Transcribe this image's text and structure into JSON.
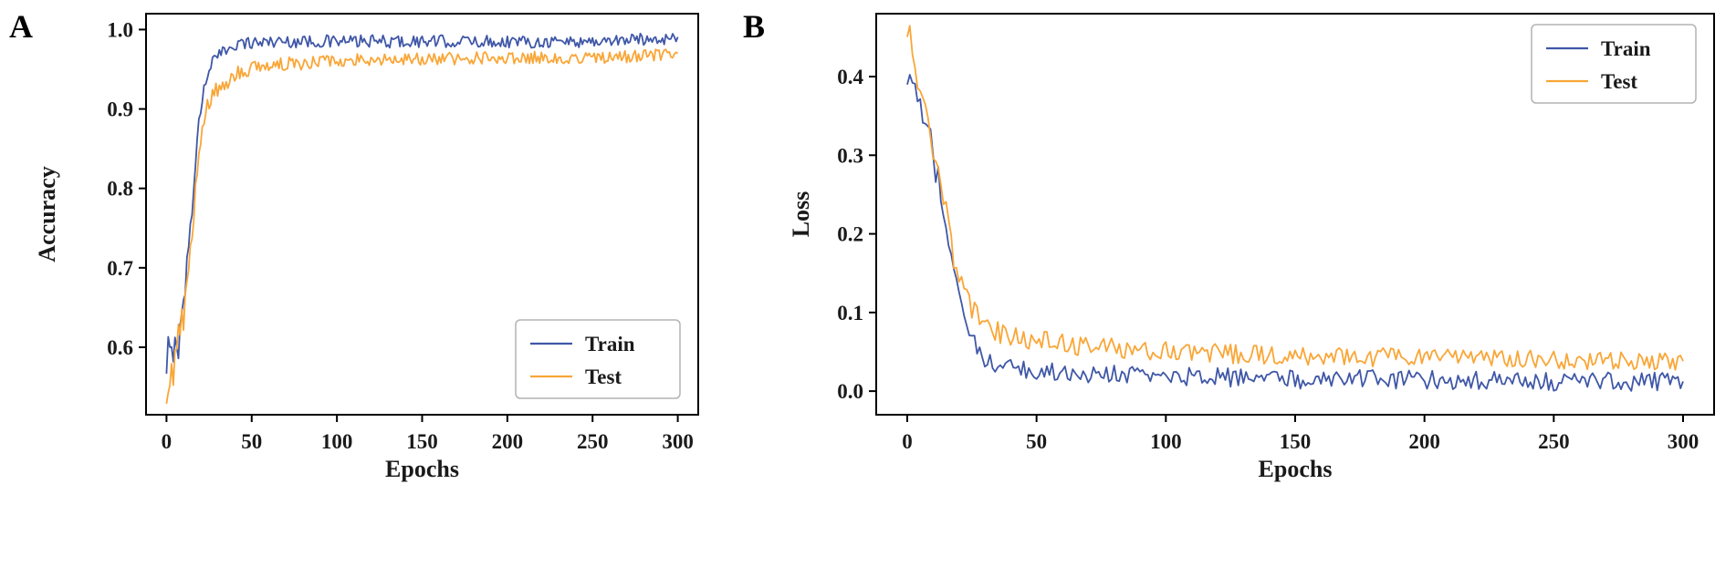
{
  "figure": {
    "background": "#ffffff"
  },
  "panels": [
    {
      "label": "A"
    },
    {
      "label": "B"
    }
  ],
  "colors": {
    "train": "#3f57a7",
    "test": "#f9a637",
    "axis": "#000000",
    "legend_border": "#b3b3b3",
    "text": "#1a1a1a"
  },
  "chart_data": [
    {
      "type": "line",
      "panel": "A",
      "title": "",
      "xlabel": "Epochs",
      "ylabel": "Accuracy",
      "xlim": [
        -12,
        312
      ],
      "ylim": [
        0.515,
        1.02
      ],
      "x_ticks": [
        0,
        50,
        100,
        150,
        200,
        250,
        300
      ],
      "x_tick_labels": [
        "0",
        "50",
        "100",
        "150",
        "200",
        "250",
        "300"
      ],
      "y_ticks": [
        0.6,
        0.7,
        0.8,
        0.9,
        1.0
      ],
      "y_tick_labels": [
        "0.6",
        "0.7",
        "0.8",
        "0.9",
        "1.0"
      ],
      "grid": false,
      "legend_loc": "lower right",
      "series": [
        {
          "name": "Train",
          "color": "#3f57a7",
          "trend_x": [
            0,
            1,
            3,
            5,
            7,
            10,
            12,
            15,
            18,
            20,
            23,
            25,
            30,
            35,
            40,
            60,
            100,
            150,
            200,
            250,
            300
          ],
          "trend_y": [
            0.555,
            0.6,
            0.585,
            0.615,
            0.6,
            0.655,
            0.7,
            0.78,
            0.86,
            0.9,
            0.935,
            0.955,
            0.965,
            0.975,
            0.982,
            0.985,
            0.985,
            0.985,
            0.985,
            0.985,
            0.99
          ],
          "noise": [
            0.02,
            0.02,
            0.02,
            0.018,
            0.018,
            0.018,
            0.018,
            0.015,
            0.012,
            0.012,
            0.01,
            0.01,
            0.008,
            0.008,
            0.008,
            0.008,
            0.008,
            0.008,
            0.008,
            0.008,
            0.008
          ]
        },
        {
          "name": "Test",
          "color": "#f9a637",
          "trend_x": [
            0,
            2,
            4,
            6,
            8,
            10,
            12,
            15,
            18,
            20,
            25,
            30,
            35,
            40,
            50,
            60,
            80,
            100,
            150,
            200,
            250,
            300
          ],
          "trend_y": [
            0.54,
            0.57,
            0.555,
            0.6,
            0.625,
            0.64,
            0.68,
            0.75,
            0.82,
            0.865,
            0.91,
            0.925,
            0.93,
            0.945,
            0.95,
            0.955,
            0.958,
            0.962,
            0.963,
            0.965,
            0.965,
            0.968
          ],
          "noise": [
            0.02,
            0.02,
            0.02,
            0.02,
            0.02,
            0.02,
            0.018,
            0.015,
            0.015,
            0.012,
            0.012,
            0.012,
            0.01,
            0.01,
            0.009,
            0.009,
            0.009,
            0.008,
            0.008,
            0.008,
            0.008,
            0.008
          ]
        }
      ]
    },
    {
      "type": "line",
      "panel": "B",
      "title": "",
      "xlabel": "Epochs",
      "ylabel": "Loss",
      "xlim": [
        -12,
        312
      ],
      "ylim": [
        -0.03,
        0.48
      ],
      "x_ticks": [
        0,
        50,
        100,
        150,
        200,
        250,
        300
      ],
      "x_tick_labels": [
        "0",
        "50",
        "100",
        "150",
        "200",
        "250",
        "300"
      ],
      "y_ticks": [
        0.0,
        0.1,
        0.2,
        0.3,
        0.4
      ],
      "y_tick_labels": [
        "0.0",
        "0.1",
        "0.2",
        "0.3",
        "0.4"
      ],
      "grid": false,
      "legend_loc": "upper right",
      "series": [
        {
          "name": "Train",
          "color": "#3f57a7",
          "trend_x": [
            0,
            2,
            4,
            6,
            8,
            10,
            12,
            15,
            18,
            20,
            23,
            25,
            28,
            30,
            35,
            40,
            50,
            75,
            100,
            150,
            200,
            250,
            300
          ],
          "trend_y": [
            0.4,
            0.38,
            0.36,
            0.345,
            0.33,
            0.3,
            0.27,
            0.2,
            0.15,
            0.13,
            0.09,
            0.07,
            0.05,
            0.04,
            0.03,
            0.028,
            0.025,
            0.022,
            0.02,
            0.015,
            0.015,
            0.012,
            0.012
          ],
          "noise": [
            0.025,
            0.022,
            0.02,
            0.02,
            0.02,
            0.02,
            0.02,
            0.018,
            0.015,
            0.015,
            0.012,
            0.012,
            0.012,
            0.012,
            0.012,
            0.012,
            0.012,
            0.012,
            0.012,
            0.012,
            0.012,
            0.012,
            0.012
          ]
        },
        {
          "name": "Test",
          "color": "#f9a637",
          "trend_x": [
            0,
            1,
            3,
            5,
            7,
            10,
            12,
            15,
            18,
            20,
            25,
            30,
            35,
            40,
            50,
            60,
            80,
            100,
            150,
            200,
            250,
            300
          ],
          "trend_y": [
            0.455,
            0.465,
            0.41,
            0.4,
            0.37,
            0.31,
            0.28,
            0.225,
            0.17,
            0.15,
            0.105,
            0.085,
            0.075,
            0.07,
            0.065,
            0.06,
            0.055,
            0.05,
            0.045,
            0.042,
            0.04,
            0.038
          ],
          "noise": [
            0.02,
            0.02,
            0.02,
            0.02,
            0.02,
            0.02,
            0.02,
            0.018,
            0.018,
            0.016,
            0.015,
            0.014,
            0.014,
            0.013,
            0.013,
            0.013,
            0.013,
            0.013,
            0.012,
            0.012,
            0.012,
            0.012
          ]
        }
      ]
    }
  ]
}
